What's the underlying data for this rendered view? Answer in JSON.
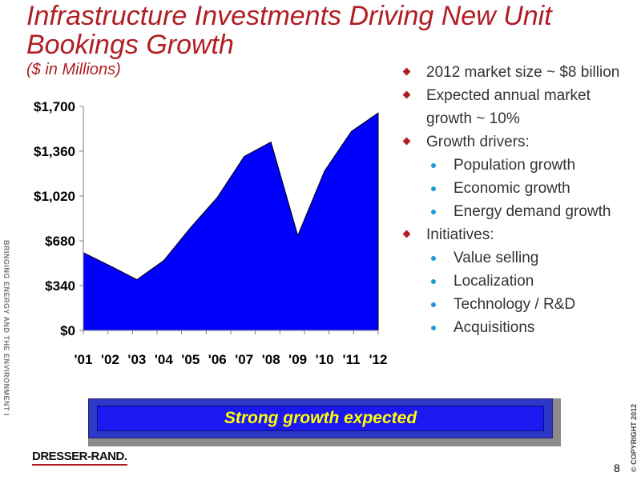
{
  "slide": {
    "title": "Infrastructure Investments Driving New Unit Bookings Growth",
    "subtitle": "($ in Millions)",
    "side_text": "BRINGING ENERGY AND THE ENVIRONMENT INTO HARMONY",
    "copyright": "© COPYRIGHT 2012",
    "logo": "DRESSER-RAND.",
    "page_number": "8",
    "banner": "Strong growth expected"
  },
  "bullets": [
    {
      "level": 1,
      "text": "2012 market size ~ $8 billion"
    },
    {
      "level": 1,
      "text": "Expected annual market growth ~ 10%"
    },
    {
      "level": 1,
      "text": "Growth drivers:"
    },
    {
      "level": 2,
      "text": "Population growth"
    },
    {
      "level": 2,
      "text": "Economic growth"
    },
    {
      "level": 2,
      "text": "Energy demand growth"
    },
    {
      "level": 1,
      "text": "Initiatives:"
    },
    {
      "level": 2,
      "text": "Value selling"
    },
    {
      "level": 2,
      "text": "Localization"
    },
    {
      "level": 2,
      "text": "Technology / R&D"
    },
    {
      "level": 2,
      "text": "Acquisitions"
    }
  ],
  "colors": {
    "title": "#b01e24",
    "area_fill": "#0000ff",
    "banner_text": "#ffff00",
    "level1_bullet": "#b01e24",
    "level2_bullet": "#1e9ad6"
  },
  "chart_data": {
    "type": "area",
    "x": [
      "'01",
      "'02",
      "'03",
      "'04",
      "'05",
      "'06",
      "'07",
      "'08",
      "'09",
      "'10",
      "'11",
      "'12"
    ],
    "series": [
      {
        "values": [
          590,
          490,
          385,
          530,
          780,
          1010,
          1320,
          1430,
          720,
          1210,
          1510,
          1650
        ]
      }
    ],
    "yticks": [
      "$0",
      "$340",
      "$680",
      "$1,020",
      "$1,360",
      "$1,700"
    ],
    "ylim": [
      0,
      1700
    ],
    "grid": false,
    "legend": "none"
  }
}
